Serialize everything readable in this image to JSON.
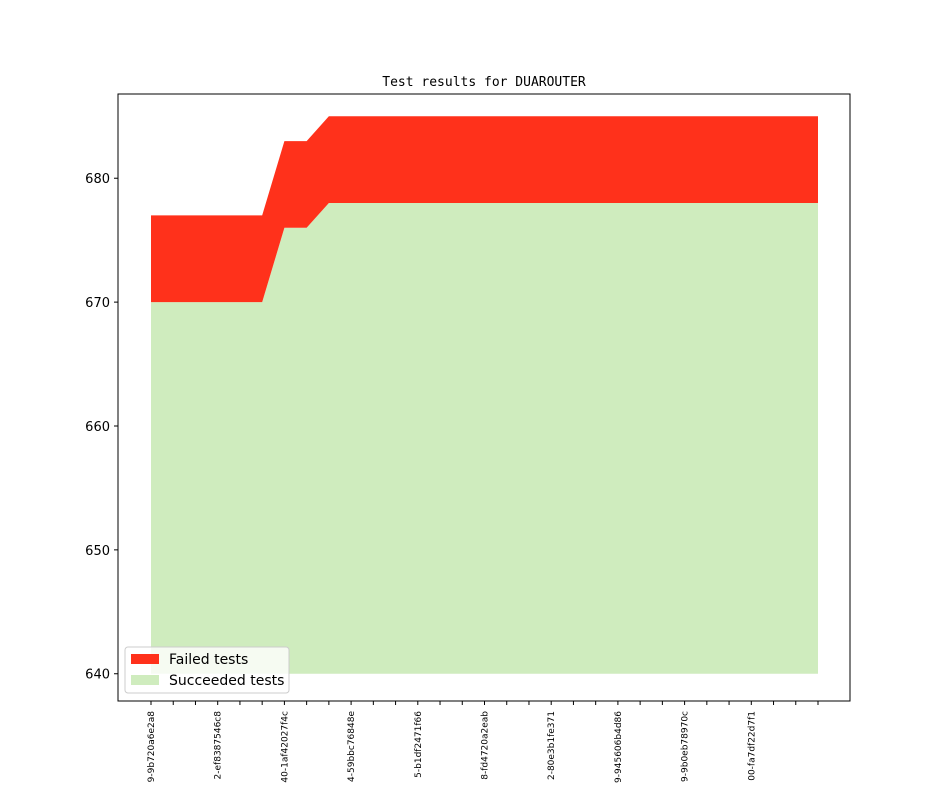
{
  "chart_data": {
    "type": "area",
    "title": "Test results for DUAROUTER",
    "xlabel": "",
    "ylabel": "",
    "ylim": [
      637.8,
      686.8
    ],
    "yticks": [
      640,
      650,
      660,
      670,
      680
    ],
    "grid": false,
    "legend_position": "lower-left",
    "x_count": 31,
    "xtick_labels": [
      {
        "index": 0,
        "label": "9-9b720a6e2a8"
      },
      {
        "index": 3,
        "label": "2-ef838754 6c8"
      },
      {
        "index": 6,
        "label": "40-1af42027f4c"
      },
      {
        "index": 9,
        "label": "4-59bbc76848e"
      },
      {
        "index": 12,
        "label": "5-b1df2471f66"
      },
      {
        "index": 15,
        "label": "8-fd4720a2eab"
      },
      {
        "index": 18,
        "label": "2-80e3b1fe371"
      },
      {
        "index": 21,
        "label": "9-945606b4d86"
      },
      {
        "index": 24,
        "label": "9-9b0eb78970c"
      },
      {
        "index": 27,
        "label": "00-fa7df22d7f1"
      }
    ],
    "baseline": 640,
    "series": [
      {
        "name": "Succeeded tests",
        "color": "#cfecbe",
        "values": [
          670,
          670,
          670,
          670,
          670,
          670,
          676,
          676,
          678,
          678,
          678,
          678,
          678,
          678,
          678,
          678,
          678,
          678,
          678,
          678,
          678,
          678,
          678,
          678,
          678,
          678,
          678,
          678,
          678,
          678,
          678
        ]
      },
      {
        "name": "Failed tests",
        "color": "#ff311b",
        "values": [
          677,
          677,
          677,
          677,
          677,
          677,
          683,
          683,
          685,
          685,
          685,
          685,
          685,
          685,
          685,
          685,
          685,
          685,
          685,
          685,
          685,
          685,
          685,
          685,
          685,
          685,
          685,
          685,
          685,
          685,
          685
        ]
      }
    ]
  }
}
